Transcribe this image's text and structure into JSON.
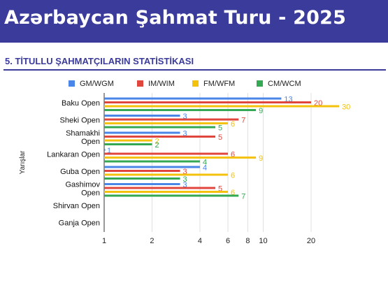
{
  "banner": {
    "title": "Azərbaycan Şahmat Turu - 2025"
  },
  "section": {
    "title": "5. TİTULLU ŞAHMATÇILARIN STATİSTİKASI"
  },
  "colors": {
    "banner_bg": "#3b3b9b",
    "section_title": "#3b3b9b",
    "grid": "#e0e0e0",
    "axis": "#333333"
  },
  "chart_data": {
    "type": "bar",
    "orientation": "horizontal",
    "x_scale": "log",
    "xlim": [
      1,
      30
    ],
    "x_ticks": [
      1,
      2,
      4,
      6,
      8,
      10,
      20
    ],
    "ylabel": "Yarışlar",
    "grid": true,
    "legend_position": "top",
    "categories": [
      [
        "Baku Open"
      ],
      [
        "Sheki Open"
      ],
      [
        "Shamakhi",
        "Open"
      ],
      [
        "Lankaran Open"
      ],
      [
        "Guba Open"
      ],
      [
        "Gashimov",
        "Open"
      ],
      [
        "Shirvan Open"
      ],
      [
        "Ganja Open"
      ]
    ],
    "series": [
      {
        "name": "GM/WGM",
        "color": "#4a86e8",
        "values": [
          13,
          3,
          3,
          1,
          4,
          3,
          null,
          null
        ]
      },
      {
        "name": "IM/WIM",
        "color": "#e0463c",
        "values": [
          20,
          7,
          5,
          6,
          3,
          5,
          null,
          null
        ]
      },
      {
        "name": "FM/WFM",
        "color": "#f4c20d",
        "values": [
          30,
          6,
          2,
          9,
          6,
          6,
          null,
          null
        ]
      },
      {
        "name": "CM/WCM",
        "color": "#34a853",
        "values": [
          9,
          5,
          2,
          4,
          3,
          7,
          null,
          null
        ]
      }
    ]
  }
}
